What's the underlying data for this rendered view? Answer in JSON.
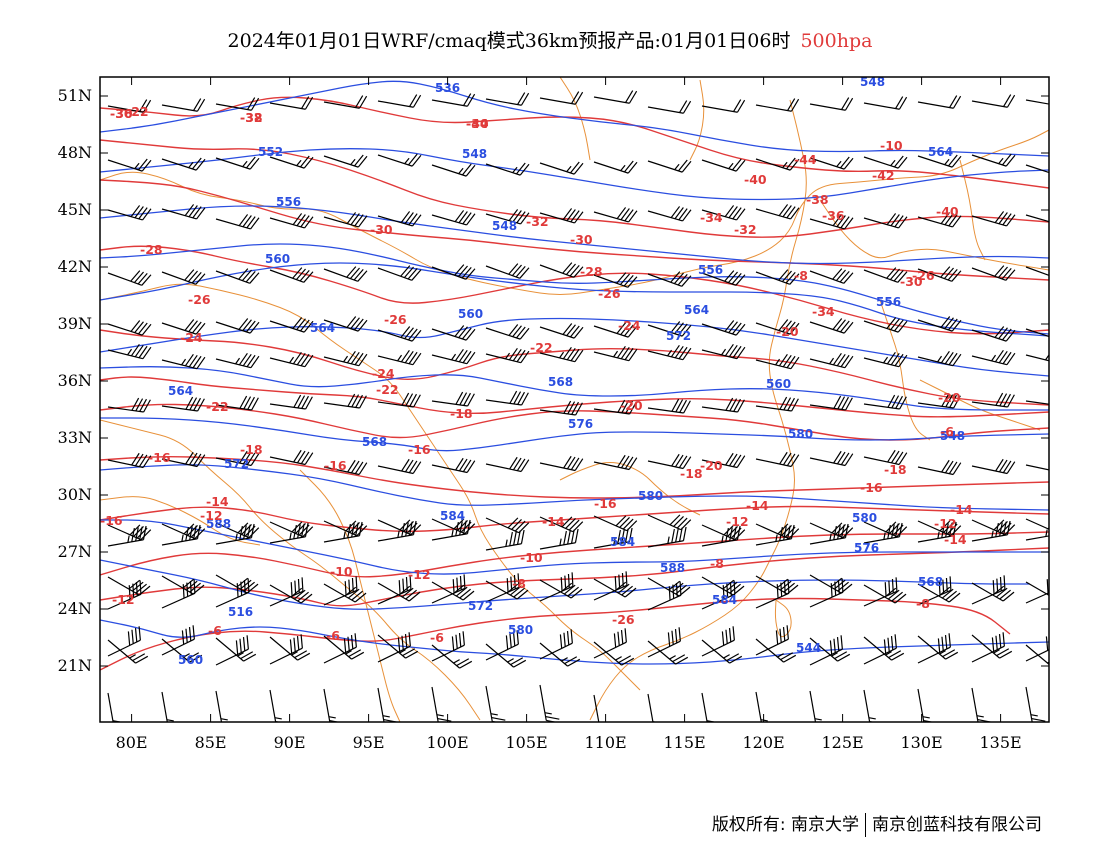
{
  "title": {
    "main": "2024年01月01日WRF/cmaq模式36km预报产品:01月01日06时",
    "level": "500hpa"
  },
  "footer": {
    "copyright_label": "版权所有:",
    "org1": "南京大学",
    "org2": "南京创蓝科技有限公司"
  },
  "colors": {
    "height_contour": "#2b4ee0",
    "temperature_contour": "#e03a3a",
    "border": "#e8913a",
    "wind_barb": "#000000"
  },
  "axes": {
    "x_ticks": [
      "80E",
      "85E",
      "90E",
      "95E",
      "100E",
      "105E",
      "110E",
      "115E",
      "120E",
      "125E",
      "130E",
      "135E"
    ],
    "y_ticks": [
      "51N",
      "48N",
      "45N",
      "42N",
      "39N",
      "36N",
      "33N",
      "30N",
      "27N",
      "24N",
      "21N"
    ]
  },
  "height_labels": [
    "536",
    "552",
    "548",
    "556",
    "548",
    "560",
    "564",
    "560",
    "556",
    "564",
    "568",
    "572",
    "560",
    "564",
    "568",
    "572",
    "576",
    "580",
    "584",
    "580",
    "588",
    "584",
    "588",
    "580",
    "576",
    "568",
    "572",
    "580",
    "584",
    "516",
    "560",
    "544",
    "548",
    "564",
    "556",
    "548"
  ],
  "temperature_labels": [
    "-30",
    "-32",
    "-40",
    "-44",
    "-42",
    "-40",
    "-38",
    "-36",
    "-32",
    "-34",
    "-40",
    "-28",
    "-26",
    "-30",
    "-32",
    "-30",
    "-28",
    "-26",
    "-24",
    "-26",
    "-24",
    "-22",
    "-20",
    "-24",
    "-22",
    "-22",
    "-20",
    "-18",
    "-20",
    "-16",
    "-18",
    "-16",
    "-16",
    "-18",
    "-16",
    "-14",
    "-12",
    "-14",
    "-12",
    "-14",
    "-16",
    "-14",
    "-12",
    "-10",
    "-10",
    "-8",
    "-12",
    "-8",
    "-6",
    "-6",
    "-8",
    "-6",
    "-26",
    "-34",
    "-30",
    "-26",
    "-22",
    "-20",
    "-18",
    "-16",
    "-14",
    "-12",
    "-10",
    "-8",
    "-6",
    "-36",
    "-38",
    "-34"
  ]
}
